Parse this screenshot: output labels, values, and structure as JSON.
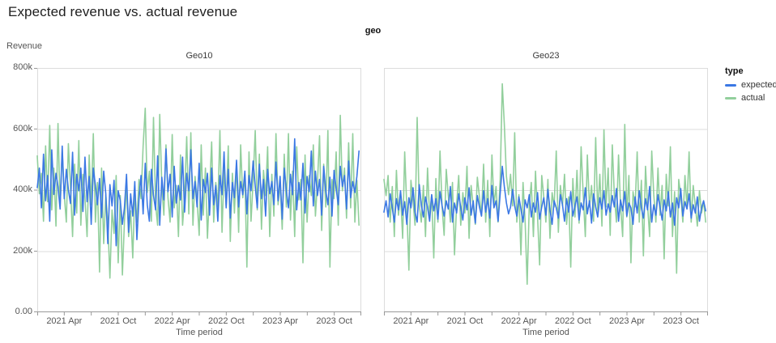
{
  "title": "Expected revenue vs. actual revenue",
  "facet": {
    "header": "geo"
  },
  "legend": {
    "title": "type",
    "items": [
      {
        "label": "expected",
        "color": "#3b78e4"
      },
      {
        "label": "actual",
        "color": "#92cf9c"
      }
    ]
  },
  "colors": {
    "expected": "#3b78e4",
    "actual": "#92cf9c",
    "gridline": "#dcdcdc",
    "axis_line": "#999999",
    "text_muted": "#555555"
  },
  "chart_data": [
    {
      "type": "line",
      "facet_value": "Geo10",
      "title": "Geo10",
      "xlabel": "Time period",
      "ylabel": "Revenue",
      "ylim": [
        0,
        800000
      ],
      "y_ticks_top_to_bottom": [
        "800k",
        "600k",
        "400k",
        "200k",
        "0.00"
      ],
      "x_ticks": [
        "2021 Apr",
        "2021 Oct",
        "2022 Apr",
        "2022 Oct",
        "2023 Apr",
        "2023 Oct"
      ],
      "x_domain": [
        "2021 Jan",
        "2024 Jan"
      ],
      "x_resolution": "weekly",
      "value_unit": "thousands",
      "series": [
        {
          "name": "expected",
          "color": "#3b78e4",
          "values_k": [
            408,
            472,
            342,
            518,
            365,
            448,
            298,
            532,
            386,
            455,
            412,
            338,
            544,
            372,
            468,
            402,
            356,
            524,
            318,
            452,
            398,
            472,
            330,
            508,
            362,
            445,
            288,
            472,
            415,
            352,
            438,
            310,
            462,
            388,
            225,
            418,
            348,
            432,
            218,
            398,
            365,
            288,
            342,
            452,
            262,
            388,
            315,
            428,
            238,
            372,
            448,
            322,
            488,
            352,
            298,
            468,
            382,
            335,
            512,
            285,
            442,
            368,
            535,
            395,
            452,
            312,
            478,
            358,
            415,
            368,
            508,
            328,
            455,
            398,
            532,
            372,
            428,
            345,
            488,
            302,
            435,
            392,
            455,
            318,
            472,
            352,
            415,
            298,
            448,
            385,
            525,
            342,
            468,
            308,
            425,
            375,
            498,
            345,
            428,
            385,
            462,
            322,
            448,
            398,
            495,
            412,
            342,
            485,
            372,
            435,
            315,
            468,
            388,
            428,
            352,
            492,
            365,
            445,
            305,
            472,
            398,
            342,
            452,
            385,
            568,
            335,
            425,
            368,
            488,
            325,
            445,
            395,
            528,
            348,
            462,
            382,
            435,
            318,
            478,
            398,
            352,
            442,
            315,
            465,
            405,
            352,
            478,
            412,
            448,
            338,
            495,
            375,
            428,
            392,
            445,
            528
          ]
        },
        {
          "name": "actual",
          "color": "#92cf9c",
          "values_k": [
            512,
            388,
            455,
            298,
            545,
            362,
            612,
            335,
            472,
            282,
            618,
            345,
            528,
            385,
            295,
            552,
            412,
            248,
            485,
            325,
            562,
            285,
            452,
            375,
            248,
            515,
            352,
            585,
            295,
            425,
            132,
            472,
            225,
            385,
            295,
            112,
            335,
            258,
            448,
            162,
            382,
            122,
            295,
            412,
            248,
            332,
            178,
            398,
            295,
            435,
            372,
            545,
            668,
            392,
            462,
            298,
            638,
            352,
            285,
            648,
            412,
            318,
            548,
            375,
            295,
            582,
            342,
            415,
            248,
            515,
            285,
            378,
            575,
            322,
            588,
            285,
            445,
            368,
            252,
            548,
            318,
            472,
            242,
            398,
            558,
            295,
            425,
            345,
            595,
            262,
            472,
            348,
            545,
            232,
            455,
            325,
            485,
            262,
            548,
            375,
            452,
            148,
            525,
            298,
            432,
            595,
            335,
            518,
            272,
            465,
            382,
            542,
            248,
            452,
            315,
            585,
            352,
            422,
            272,
            518,
            345,
            585,
            302,
            462,
            248,
            542,
            368,
            435,
            162,
            515,
            295,
            448,
            382,
            548,
            315,
            425,
            578,
            268,
            485,
            345,
            595,
            148,
            435,
            372,
            525,
            285,
            645,
            398,
            472,
            308,
            555,
            342,
            585,
            295,
            432,
            285
          ]
        }
      ]
    },
    {
      "type": "line",
      "facet_value": "Geo23",
      "title": "Geo23",
      "xlabel": "Time period",
      "ylabel": "Revenue",
      "ylim": [
        0,
        800000
      ],
      "y_ticks_top_to_bottom": [
        "800k",
        "600k",
        "400k",
        "200k",
        "0.00"
      ],
      "x_ticks": [
        "2021 Apr",
        "2021 Oct",
        "2022 Apr",
        "2022 Oct",
        "2023 Apr",
        "2023 Oct"
      ],
      "x_domain": [
        "2021 Jan",
        "2024 Jan"
      ],
      "x_resolution": "weekly",
      "value_unit": "thousands",
      "series": [
        {
          "name": "expected",
          "color": "#3b78e4",
          "values_k": [
            328,
            365,
            312,
            388,
            342,
            295,
            372,
            335,
            398,
            318,
            362,
            288,
            375,
            342,
            408,
            328,
            295,
            418,
            352,
            312,
            378,
            345,
            298,
            385,
            332,
            372,
            305,
            395,
            348,
            315,
            365,
            338,
            412,
            295,
            358,
            325,
            388,
            342,
            302,
            375,
            335,
            408,
            318,
            365,
            292,
            382,
            345,
            315,
            398,
            328,
            372,
            308,
            415,
            342,
            365,
            298,
            388,
            478,
            412,
            358,
            322,
            345,
            402,
            348,
            315,
            378,
            338,
            295,
            368,
            342,
            385,
            312,
            358,
            328,
            392,
            305,
            345,
            375,
            318,
            402,
            335,
            288,
            365,
            342,
            308,
            385,
            352,
            298,
            372,
            328,
            395,
            315,
            348,
            378,
            302,
            358,
            335,
            408,
            322,
            365,
            292,
            388,
            345,
            312,
            375,
            338,
            398,
            318,
            355,
            328,
            382,
            345,
            405,
            298,
            368,
            332,
            395,
            315,
            358,
            342,
            288,
            378,
            325,
            398,
            342,
            308,
            372,
            335,
            412,
            295,
            352,
            318,
            385,
            345,
            302,
            368,
            332,
            395,
            312,
            358,
            285,
            375,
            342,
            405,
            315,
            362,
            338,
            388,
            308,
            352,
            325,
            378,
            298,
            342,
            365,
            332
          ]
        },
        {
          "name": "actual",
          "color": "#92cf9c",
          "values_k": [
            435,
            382,
            448,
            295,
            412,
            248,
            465,
            318,
            385,
            242,
            525,
            345,
            138,
            432,
            365,
            285,
            638,
            352,
            295,
            415,
            248,
            472,
            315,
            385,
            178,
            438,
            295,
            528,
            345,
            252,
            468,
            382,
            295,
            425,
            188,
            352,
            448,
            285,
            392,
            325,
            478,
            242,
            415,
            348,
            288,
            442,
            378,
            315,
            485,
            295,
            432,
            248,
            515,
            352,
            412,
            295,
            435,
            748,
            615,
            445,
            385,
            452,
            348,
            588,
            295,
            385,
            188,
            425,
            298,
            92,
            352,
            425,
            248,
            462,
            315,
            155,
            448,
            378,
            295,
            435,
            242,
            392,
            345,
            528,
            262,
            415,
            348,
            452,
            288,
            378,
            148,
            438,
            312,
            465,
            292,
            542,
            385,
            248,
            515,
            345,
            415,
            298,
            572,
            325,
            452,
            282,
            598,
            345,
            472,
            252,
            548,
            385,
            295,
            515,
            348,
            248,
            615,
            312,
            448,
            162,
            395,
            345,
            525,
            295,
            432,
            185,
            478,
            352,
            248,
            528,
            385,
            295,
            472,
            318,
            415,
            175,
            452,
            348,
            542,
            248,
            395,
            128,
            435,
            382,
            295,
            448,
            342,
            525,
            295,
            415,
            348,
            282,
            398,
            325,
            365,
            295
          ]
        }
      ]
    }
  ]
}
